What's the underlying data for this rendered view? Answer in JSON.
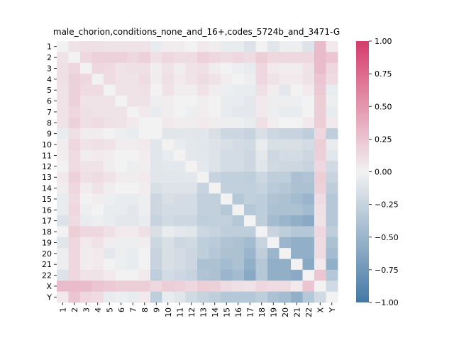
{
  "chart_data": {
    "type": "heatmap",
    "title": "male_chorion,conditions_none_and_16+,codes_5724b_and_3471-G",
    "labels": [
      "1",
      "2",
      "3",
      "4",
      "5",
      "6",
      "7",
      "8",
      "9",
      "10",
      "11",
      "12",
      "13",
      "14",
      "15",
      "16",
      "17",
      "18",
      "19",
      "20",
      "21",
      "22",
      "X",
      "Y"
    ],
    "x_tick_labels": [
      "1",
      "2",
      "3",
      "4",
      "5",
      "6",
      "7",
      "8",
      "9",
      "10",
      "11",
      "12",
      "13",
      "14",
      "15",
      "16",
      "17",
      "18",
      "19",
      "20",
      "21",
      "22",
      "X",
      "Y"
    ],
    "y_tick_labels": [
      "1",
      "2",
      "3",
      "4",
      "5",
      "6",
      "7",
      "8",
      "9",
      "10",
      "11",
      "12",
      "13",
      "14",
      "15",
      "16",
      "17",
      "18",
      "19",
      "20",
      "21",
      "22",
      "X",
      "Y"
    ],
    "colorbar": {
      "min": -1.0,
      "max": 1.0,
      "ticks": [
        "1.00",
        "0.75",
        "0.50",
        "0.25",
        "0.00",
        "−0.25",
        "−0.50",
        "−0.75",
        "−1.00"
      ],
      "tick_values": [
        1.0,
        0.75,
        0.5,
        0.25,
        0.0,
        -0.25,
        -0.5,
        -0.75,
        -1.0
      ],
      "low_color": "#4479a5",
      "mid_color": "#f2f2f2",
      "high_color": "#d63c6c"
    },
    "values": [
      [
        0.0,
        0.08,
        0.1,
        0.1,
        0.08,
        0.08,
        0.08,
        0.08,
        -0.05,
        0.03,
        0.03,
        0.0,
        0.05,
        0.03,
        -0.05,
        -0.05,
        -0.12,
        0.0,
        -0.1,
        -0.03,
        -0.03,
        -0.12,
        0.3,
        0.05
      ],
      [
        0.08,
        0.0,
        0.15,
        0.18,
        0.18,
        0.18,
        0.15,
        0.18,
        0.1,
        0.15,
        0.12,
        0.12,
        0.18,
        0.15,
        0.12,
        0.15,
        0.12,
        0.2,
        0.15,
        0.15,
        0.15,
        0.15,
        0.3,
        0.25
      ],
      [
        0.1,
        0.15,
        0.0,
        0.15,
        0.12,
        0.08,
        0.1,
        0.1,
        0.03,
        0.08,
        0.03,
        0.08,
        0.1,
        0.03,
        0.0,
        -0.03,
        -0.05,
        0.15,
        0.05,
        0.03,
        0.03,
        0.08,
        0.3,
        0.15
      ],
      [
        0.1,
        0.18,
        0.15,
        0.0,
        0.12,
        0.08,
        0.08,
        0.12,
        0.03,
        0.1,
        0.05,
        0.08,
        0.12,
        0.08,
        0.03,
        0.0,
        -0.03,
        0.15,
        0.08,
        0.05,
        0.05,
        0.08,
        0.25,
        0.12
      ],
      [
        0.08,
        0.18,
        0.12,
        0.12,
        0.0,
        0.08,
        0.08,
        0.1,
        0.0,
        0.08,
        0.03,
        0.03,
        0.08,
        0.03,
        -0.03,
        -0.05,
        -0.05,
        0.1,
        0.03,
        -0.08,
        0.0,
        0.05,
        0.22,
        -0.05
      ],
      [
        0.08,
        0.18,
        0.08,
        0.08,
        0.08,
        0.0,
        0.08,
        0.08,
        -0.03,
        0.03,
        0.0,
        0.0,
        0.03,
        0.0,
        -0.05,
        -0.05,
        -0.08,
        0.05,
        -0.03,
        -0.03,
        -0.03,
        0.0,
        0.2,
        -0.03
      ],
      [
        0.08,
        0.15,
        0.1,
        0.08,
        0.08,
        0.08,
        0.0,
        0.05,
        -0.05,
        0.03,
        0.0,
        -0.03,
        0.03,
        0.0,
        -0.05,
        -0.08,
        -0.08,
        0.05,
        -0.03,
        -0.05,
        -0.05,
        0.0,
        0.2,
        -0.05
      ],
      [
        0.08,
        0.18,
        0.1,
        0.12,
        0.1,
        0.08,
        0.05,
        0.0,
        0.0,
        0.05,
        0.03,
        0.03,
        0.05,
        0.03,
        -0.03,
        -0.03,
        -0.05,
        0.1,
        0.03,
        0.0,
        0.0,
        0.05,
        0.2,
        0.05
      ],
      [
        -0.05,
        0.1,
        0.03,
        0.03,
        0.0,
        -0.03,
        -0.05,
        0.0,
        0.0,
        -0.1,
        -0.1,
        -0.1,
        -0.1,
        -0.15,
        -0.22,
        -0.22,
        -0.25,
        -0.15,
        -0.22,
        -0.25,
        -0.25,
        -0.3,
        0.15,
        -0.3
      ],
      [
        0.03,
        0.15,
        0.08,
        0.1,
        0.08,
        0.03,
        0.03,
        0.05,
        -0.1,
        0.0,
        -0.05,
        -0.08,
        -0.1,
        -0.12,
        -0.15,
        -0.18,
        -0.2,
        -0.05,
        -0.15,
        -0.15,
        -0.15,
        -0.18,
        0.2,
        -0.05
      ],
      [
        0.03,
        0.12,
        0.03,
        0.05,
        0.03,
        0.0,
        0.0,
        0.03,
        -0.1,
        -0.05,
        0.0,
        -0.08,
        -0.1,
        -0.12,
        -0.18,
        -0.18,
        -0.22,
        -0.08,
        -0.22,
        -0.18,
        -0.18,
        -0.22,
        0.18,
        -0.1
      ],
      [
        0.0,
        0.12,
        0.08,
        0.08,
        0.03,
        0.0,
        -0.03,
        0.03,
        -0.1,
        -0.08,
        -0.08,
        0.0,
        -0.08,
        -0.12,
        -0.18,
        -0.18,
        -0.22,
        -0.1,
        -0.2,
        -0.22,
        -0.22,
        -0.25,
        0.15,
        -0.2
      ],
      [
        0.05,
        0.18,
        0.1,
        0.12,
        0.08,
        0.03,
        0.03,
        0.05,
        -0.1,
        -0.1,
        -0.1,
        -0.08,
        0.0,
        -0.25,
        -0.28,
        -0.28,
        -0.3,
        -0.22,
        -0.3,
        -0.3,
        -0.4,
        -0.38,
        0.2,
        -0.25
      ],
      [
        0.03,
        0.15,
        0.03,
        0.08,
        0.03,
        0.0,
        0.0,
        0.03,
        -0.15,
        -0.12,
        -0.12,
        -0.12,
        -0.25,
        0.0,
        -0.28,
        -0.28,
        -0.28,
        -0.25,
        -0.32,
        -0.35,
        -0.4,
        -0.4,
        0.18,
        -0.3
      ],
      [
        -0.05,
        0.12,
        0.0,
        0.03,
        -0.03,
        -0.05,
        -0.05,
        -0.03,
        -0.22,
        -0.15,
        -0.18,
        -0.18,
        -0.28,
        -0.28,
        0.0,
        -0.35,
        -0.28,
        -0.3,
        -0.38,
        -0.4,
        -0.45,
        -0.5,
        0.12,
        -0.35
      ],
      [
        -0.05,
        0.15,
        -0.03,
        0.0,
        -0.05,
        -0.05,
        -0.08,
        -0.03,
        -0.22,
        -0.18,
        -0.18,
        -0.18,
        -0.28,
        -0.28,
        -0.35,
        0.0,
        -0.35,
        -0.3,
        -0.4,
        -0.4,
        -0.4,
        -0.45,
        0.1,
        -0.35
      ],
      [
        -0.12,
        0.12,
        -0.05,
        -0.03,
        -0.05,
        -0.08,
        -0.08,
        -0.05,
        -0.25,
        -0.2,
        -0.22,
        -0.22,
        -0.3,
        -0.28,
        -0.28,
        -0.35,
        0.0,
        -0.3,
        -0.45,
        -0.5,
        -0.55,
        -0.6,
        0.08,
        -0.35
      ],
      [
        0.0,
        0.2,
        0.15,
        0.15,
        0.1,
        0.05,
        0.05,
        0.1,
        -0.15,
        -0.05,
        -0.08,
        -0.1,
        -0.22,
        -0.25,
        -0.3,
        -0.3,
        -0.3,
        0.0,
        -0.25,
        -0.3,
        -0.35,
        -0.35,
        0.15,
        -0.3
      ],
      [
        -0.1,
        0.15,
        0.05,
        0.08,
        0.03,
        -0.03,
        -0.03,
        0.03,
        -0.22,
        -0.15,
        -0.22,
        -0.2,
        -0.3,
        -0.32,
        -0.38,
        -0.4,
        -0.45,
        -0.25,
        0.0,
        -0.5,
        -0.55,
        -0.55,
        0.12,
        -0.4
      ],
      [
        -0.03,
        0.15,
        0.03,
        0.05,
        -0.08,
        -0.03,
        -0.05,
        0.0,
        -0.25,
        -0.15,
        -0.18,
        -0.22,
        -0.3,
        -0.35,
        -0.4,
        -0.4,
        -0.5,
        -0.3,
        -0.5,
        0.0,
        -0.55,
        -0.55,
        0.12,
        -0.45
      ],
      [
        -0.03,
        0.15,
        0.03,
        0.05,
        0.0,
        -0.03,
        -0.05,
        0.0,
        -0.25,
        -0.15,
        -0.18,
        -0.22,
        -0.4,
        -0.4,
        -0.45,
        -0.4,
        -0.55,
        -0.35,
        -0.55,
        -0.55,
        0.0,
        -0.6,
        0.05,
        -0.55
      ],
      [
        -0.12,
        0.15,
        0.08,
        0.08,
        0.05,
        0.0,
        0.0,
        0.05,
        -0.3,
        -0.18,
        -0.22,
        -0.25,
        -0.38,
        -0.4,
        -0.5,
        -0.45,
        -0.6,
        -0.35,
        -0.55,
        -0.55,
        -0.6,
        0.0,
        0.25,
        -0.35
      ],
      [
        0.3,
        0.3,
        0.3,
        0.25,
        0.22,
        0.2,
        0.2,
        0.2,
        0.15,
        0.2,
        0.18,
        0.15,
        0.2,
        0.18,
        0.12,
        0.1,
        0.08,
        0.15,
        0.12,
        0.12,
        0.05,
        0.25,
        0.0,
        -0.2
      ],
      [
        0.05,
        0.25,
        0.15,
        0.12,
        -0.05,
        -0.03,
        -0.05,
        0.05,
        -0.3,
        -0.05,
        -0.1,
        -0.2,
        -0.25,
        -0.3,
        -0.35,
        -0.35,
        -0.35,
        -0.3,
        -0.4,
        -0.45,
        -0.55,
        -0.35,
        -0.2,
        0.0
      ]
    ]
  }
}
